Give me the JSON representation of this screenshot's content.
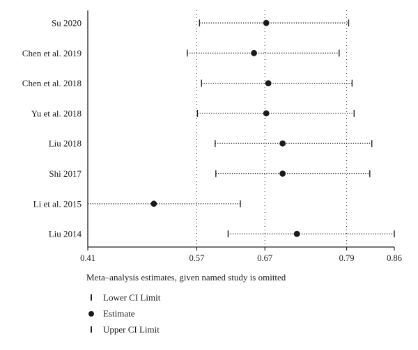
{
  "chart_data": {
    "type": "forest-scatter",
    "studies": [
      {
        "label": "Su 2020",
        "lower": 0.574,
        "estimate": 0.672,
        "upper": 0.793
      },
      {
        "label": "Chen et al. 2019",
        "lower": 0.556,
        "estimate": 0.654,
        "upper": 0.779
      },
      {
        "label": "Chen et al. 2018",
        "lower": 0.577,
        "estimate": 0.675,
        "upper": 0.798
      },
      {
        "label": "Yu et al. 2018",
        "lower": 0.571,
        "estimate": 0.672,
        "upper": 0.801
      },
      {
        "label": "Liu 2018",
        "lower": 0.597,
        "estimate": 0.696,
        "upper": 0.827
      },
      {
        "label": "Shi 2017",
        "lower": 0.598,
        "estimate": 0.696,
        "upper": 0.824
      },
      {
        "label": "Li et al. 2015",
        "lower": 0.41,
        "estimate": 0.507,
        "upper": 0.634
      },
      {
        "label": "Liu 2014",
        "lower": 0.616,
        "estimate": 0.717,
        "upper": 0.86
      }
    ],
    "x_ticks": [
      0.41,
      0.57,
      0.67,
      0.79,
      0.86
    ],
    "x_tick_labels": [
      "0.41",
      "0.57",
      "0.67",
      "0.79",
      "0.86"
    ],
    "reference_lines": [
      0.57,
      0.67,
      0.79
    ],
    "xlim": [
      0.41,
      0.86
    ],
    "legend": {
      "title": "Meta–analysis estimates, given named study is omitted",
      "items": [
        {
          "symbol": "bar",
          "label": "Lower CI Limit"
        },
        {
          "symbol": "dot",
          "label": "Estimate"
        },
        {
          "symbol": "bar",
          "label": "Upper CI Limit"
        }
      ]
    }
  }
}
